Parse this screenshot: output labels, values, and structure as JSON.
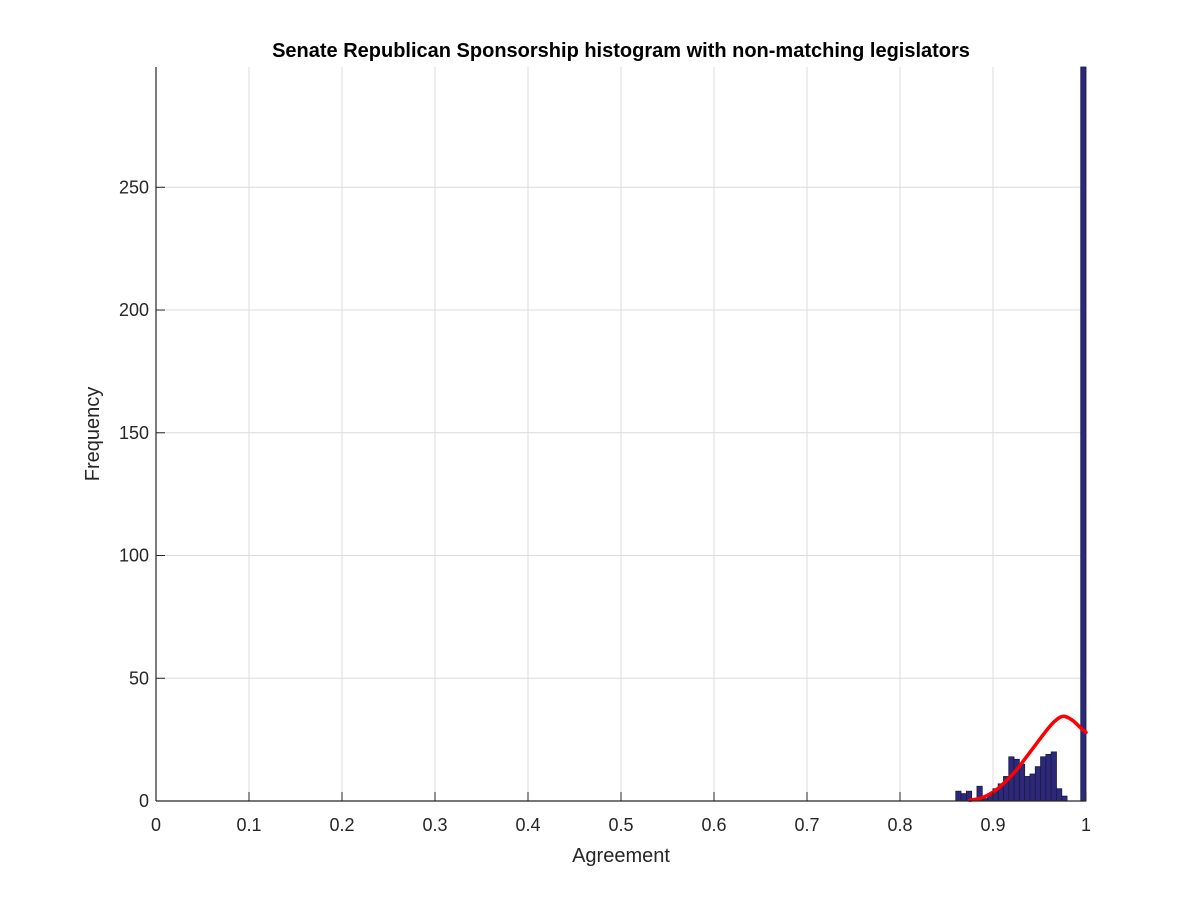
{
  "chart_data": {
    "type": "bar",
    "title": "Senate Republican Sponsorship histogram with non-matching legislators",
    "xlabel": "Agreement",
    "ylabel": "Frequency",
    "xlim": [
      0,
      1
    ],
    "ylim": [
      0,
      299
    ],
    "xticks": [
      0,
      0.1,
      0.2,
      0.3,
      0.4,
      0.5,
      0.6,
      0.7,
      0.8,
      0.9,
      1
    ],
    "xtick_labels": [
      "0",
      "0.1",
      "0.2",
      "0.3",
      "0.4",
      "0.5",
      "0.6",
      "0.7",
      "0.8",
      "0.9",
      "1"
    ],
    "yticks": [
      0,
      50,
      100,
      150,
      200,
      250
    ],
    "ytick_labels": [
      "0",
      "50",
      "100",
      "150",
      "200",
      "250"
    ],
    "grid": true,
    "bin_width": 0.0057,
    "bin_centers": [
      0.8628,
      0.8685,
      0.8742,
      0.8799,
      0.8856,
      0.8913,
      0.897,
      0.9027,
      0.9084,
      0.9141,
      0.9198,
      0.9255,
      0.9312,
      0.9369,
      0.9426,
      0.9483,
      0.954,
      0.9597,
      0.9654,
      0.9711,
      0.9768,
      0.9825,
      0.9882,
      0.9939,
      0.9972
    ],
    "values": [
      4,
      3,
      4,
      0,
      6,
      1,
      3,
      5,
      7,
      10,
      18,
      17,
      15,
      10,
      11,
      14,
      18,
      19,
      20,
      5,
      2,
      0,
      0,
      0,
      299
    ],
    "bar_color": "#2e2878",
    "bar_edge_color": "#1a1a4a",
    "fit_curve": {
      "color": "#ff0000",
      "x": [
        0.875,
        0.885,
        0.895,
        0.905,
        0.915,
        0.925,
        0.935,
        0.945,
        0.955,
        0.965,
        0.975,
        0.985,
        0.995,
        1.0
      ],
      "y": [
        0.3,
        1.0,
        2.5,
        5.0,
        8.5,
        12.5,
        17.5,
        22.5,
        27.5,
        32.0,
        34.5,
        33.0,
        29.5,
        28.0
      ]
    }
  }
}
